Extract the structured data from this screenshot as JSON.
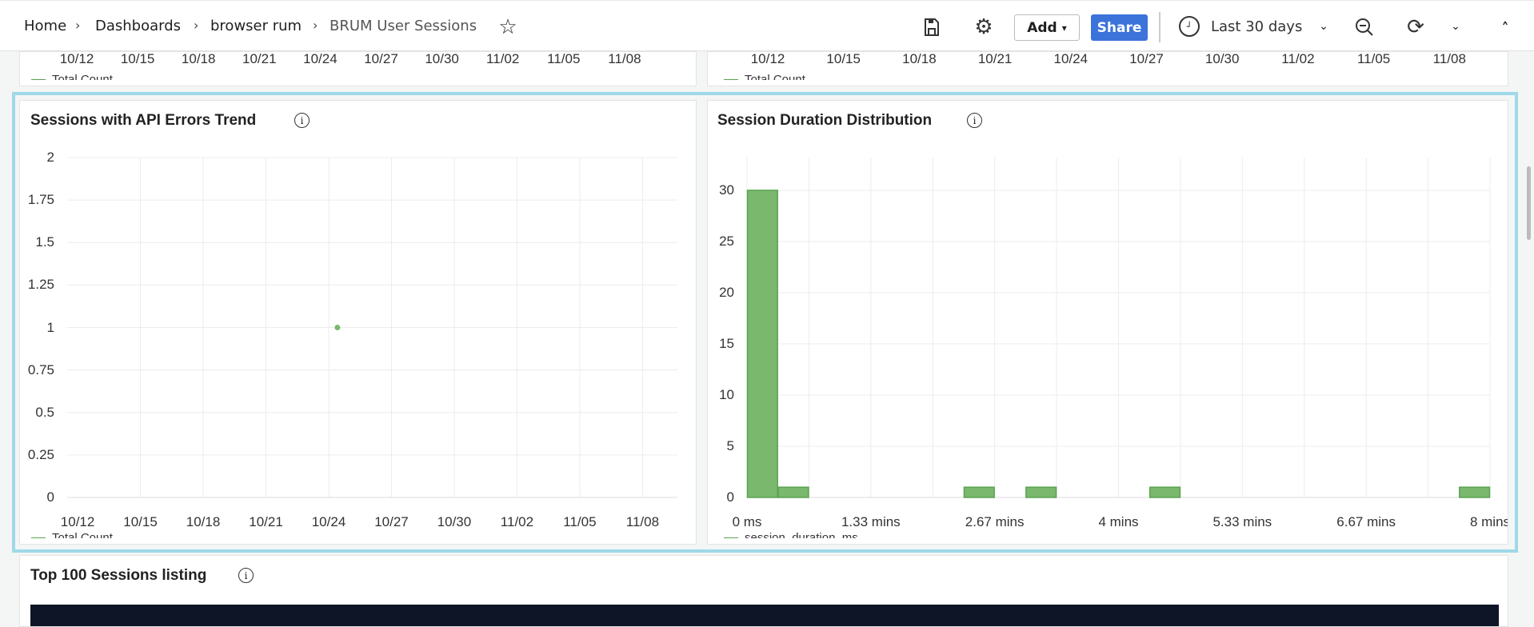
{
  "breadcrumb": [
    "Home",
    "Dashboards",
    "browser rum",
    "BRUM User Sessions"
  ],
  "header": {
    "add_label": "Add",
    "share_label": "Share",
    "time_range": "Last 30 days",
    "icons": [
      "star-icon",
      "save-icon",
      "gear-icon",
      "clock-icon",
      "zoom-out-icon",
      "refresh-icon",
      "chevron-down-icon",
      "chevron-up-icon"
    ]
  },
  "colors": {
    "accent": "#3b73db",
    "highlight": "#9fd9e8",
    "series": "#7ab86d",
    "table_header": "#0d1526"
  },
  "top_panels": {
    "left": {
      "x_ticks": [
        "10/12",
        "10/15",
        "10/18",
        "10/21",
        "10/24",
        "10/27",
        "10/30",
        "11/02",
        "11/05",
        "11/08"
      ],
      "legend": "Total Count"
    },
    "right": {
      "x_ticks": [
        "10/12",
        "10/15",
        "10/18",
        "10/21",
        "10/24",
        "10/27",
        "10/30",
        "11/02",
        "11/05",
        "11/08"
      ],
      "legend": "Total Count"
    }
  },
  "panels": {
    "api_errors": {
      "title": "Sessions with API Errors Trend"
    },
    "duration": {
      "title": "Session Duration Distribution"
    },
    "sessions": {
      "title": "Top 100 Sessions listing"
    }
  },
  "chart_data": [
    {
      "type": "scatter",
      "title": "Sessions with API Errors Trend",
      "x_ticks": [
        "10/12",
        "10/15",
        "10/18",
        "10/21",
        "10/24",
        "10/27",
        "10/30",
        "11/02",
        "11/05",
        "11/08"
      ],
      "y_ticks": [
        "0",
        "0.25",
        "0.5",
        "0.75",
        "1",
        "1.25",
        "1.5",
        "1.75",
        "2"
      ],
      "xlim": [
        "10/11 12:00",
        "11/09 16:00"
      ],
      "ylim": [
        0,
        2
      ],
      "grid": true,
      "series": [
        {
          "name": "Total Count",
          "points": [
            {
              "x": "10/24 10:00",
              "y": 1
            }
          ]
        }
      ],
      "legend": "bottom-left"
    },
    {
      "type": "bar",
      "title": "Session Duration Distribution",
      "bin_width_seconds": 20,
      "categories_seconds": [
        0,
        20,
        140,
        180,
        260,
        460
      ],
      "values": [
        30,
        1,
        1,
        1,
        1,
        1
      ],
      "x_ticks": [
        "0 ms",
        "1.33 mins",
        "2.67 mins",
        "4 mins",
        "5.33 mins",
        "6.67 mins",
        "8 mins"
      ],
      "y_ticks": [
        "0",
        "5",
        "10",
        "15",
        "20",
        "25",
        "30"
      ],
      "xlim_seconds": [
        0,
        480
      ],
      "ylim": [
        0,
        33.2
      ],
      "grid": true,
      "series": [
        {
          "name": "session_duration_ms"
        }
      ],
      "legend": "bottom-left"
    }
  ]
}
